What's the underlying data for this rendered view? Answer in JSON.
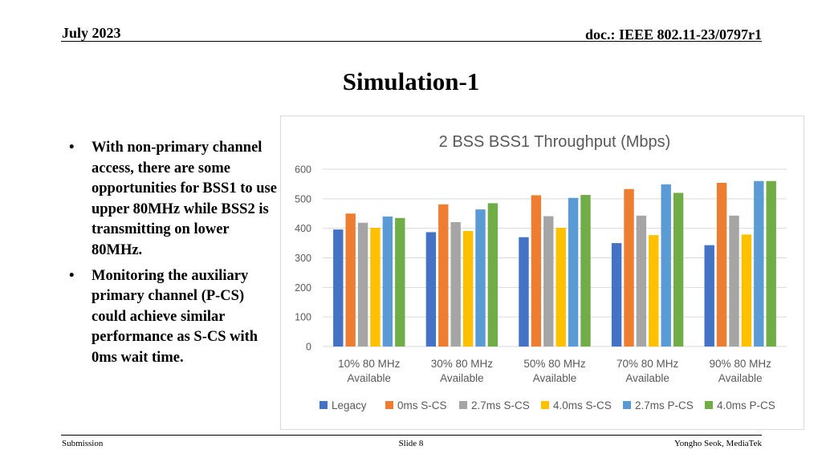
{
  "header": {
    "date": "July 2023",
    "doc": "doc.: IEEE 802.11-23/0797r1"
  },
  "slide_title": "Simulation-1",
  "bullets": [
    "With non-primary channel access, there are some opportunities for BSS1 to use upper 80MHz while BSS2 is transmitting on lower 80MHz.",
    "Monitoring the auxiliary primary channel (P-CS) could achieve similar performance as S-CS with 0ms wait time."
  ],
  "bullet_symbol": "•",
  "chart_data": {
    "type": "bar",
    "title": "2 BSS BSS1 Throughput (Mbps)",
    "categories": [
      [
        "10% 80 MHz",
        "Available"
      ],
      [
        "30% 80 MHz",
        "Available"
      ],
      [
        "50% 80 MHz",
        "Available"
      ],
      [
        "70% 80 MHz",
        "Available"
      ],
      [
        "90% 80 MHz",
        "Available"
      ]
    ],
    "series": [
      {
        "name": "Legacy",
        "color": "#4472C4",
        "values": [
          396,
          387,
          370,
          350,
          343
        ]
      },
      {
        "name": "0ms S-CS",
        "color": "#ED7D31",
        "values": [
          450,
          481,
          512,
          533,
          554
        ]
      },
      {
        "name": "2.7ms S-CS",
        "color": "#A5A5A5",
        "values": [
          419,
          421,
          441,
          443,
          443
        ]
      },
      {
        "name": "4.0ms S-CS",
        "color": "#FFC000",
        "values": [
          402,
          391,
          402,
          377,
          379
        ]
      },
      {
        "name": "2.7ms P-CS",
        "color": "#5B9BD5",
        "values": [
          440,
          464,
          503,
          549,
          560
        ]
      },
      {
        "name": "4.0ms P-CS",
        "color": "#70AD47",
        "values": [
          435,
          485,
          513,
          520,
          560
        ]
      }
    ],
    "ylim": [
      0,
      600
    ],
    "yticks": [
      0,
      100,
      200,
      300,
      400,
      500,
      600
    ],
    "grid": true,
    "legend_position": "bottom"
  },
  "footer": {
    "left": "Submission",
    "center": "Slide 8",
    "right": "Yongho Seok, MediaTek"
  }
}
